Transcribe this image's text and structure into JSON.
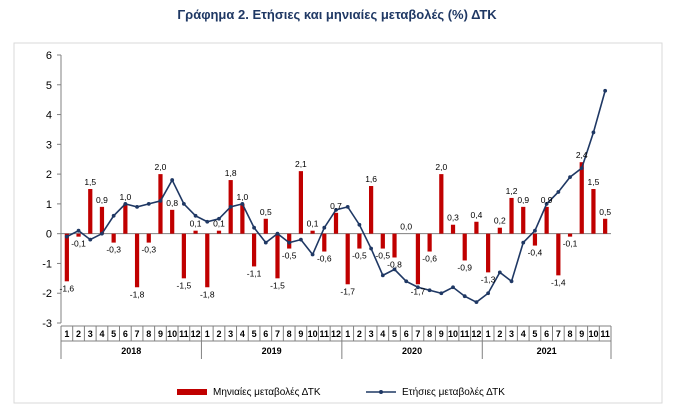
{
  "chart_data": {
    "type": "bar",
    "title": "Γράφημα 2. Ετήσιες και μηνιαίες μεταβολές (%) ΔΤΚ",
    "xlabel": "",
    "ylabel": "",
    "ylim": [
      -3,
      6
    ],
    "yticks": [
      -3,
      -2,
      -1,
      0,
      1,
      2,
      3,
      4,
      5,
      6
    ],
    "grid": false,
    "legend_position": "bottom",
    "month_labels": [
      "1",
      "2",
      "3",
      "4",
      "5",
      "6",
      "7",
      "8",
      "9",
      "10",
      "11",
      "12",
      "1",
      "2",
      "3",
      "4",
      "5",
      "6",
      "7",
      "8",
      "9",
      "10",
      "11",
      "12",
      "1",
      "2",
      "3",
      "4",
      "5",
      "6",
      "7",
      "8",
      "9",
      "10",
      "11",
      "12",
      "1",
      "2",
      "3",
      "4",
      "5",
      "6",
      "7",
      "8",
      "9",
      "10",
      "11"
    ],
    "years": [
      {
        "label": "2018",
        "months": 12
      },
      {
        "label": "2019",
        "months": 12
      },
      {
        "label": "2020",
        "months": 12
      },
      {
        "label": "2021",
        "months": 11
      }
    ],
    "series": [
      {
        "name": "Μηνιαίες μεταβολές ΔΤΚ",
        "kind": "bar",
        "color": "#c00000",
        "values": [
          -1.6,
          -0.1,
          1.5,
          0.9,
          -0.3,
          1.0,
          -1.8,
          -0.3,
          2.0,
          0.8,
          -1.5,
          0.1,
          -1.8,
          0.1,
          1.8,
          1.0,
          -1.1,
          0.5,
          -1.5,
          -0.5,
          2.1,
          0.1,
          -0.6,
          0.7,
          -1.7,
          -0.5,
          1.6,
          -0.5,
          -0.8,
          0.0,
          -1.7,
          -0.6,
          2.0,
          0.3,
          -0.9,
          0.4,
          -1.3,
          0.2,
          1.2,
          0.9,
          -0.4,
          0.9,
          -1.4,
          -0.1,
          2.4,
          1.5,
          0.5
        ]
      },
      {
        "name": "Ετήσιες μεταβολές ΔΤΚ",
        "kind": "line",
        "color": "#1f3864",
        "values": [
          -0.1,
          0.1,
          -0.2,
          0.0,
          0.6,
          1.0,
          0.9,
          1.0,
          1.1,
          1.8,
          1.0,
          0.6,
          0.4,
          0.5,
          0.9,
          1.0,
          0.2,
          -0.3,
          0.0,
          -0.3,
          -0.2,
          -0.7,
          0.2,
          0.8,
          0.9,
          0.3,
          -0.5,
          -1.4,
          -1.2,
          -1.6,
          -1.8,
          -1.9,
          -2.0,
          -1.8,
          -2.1,
          -2.3,
          -2.0,
          -1.3,
          -1.6,
          -0.3,
          0.1,
          1.0,
          1.4,
          1.9,
          2.2,
          3.4,
          4.8
        ]
      }
    ],
    "data_labels": [
      "-1,6",
      "-0,1",
      "1,5",
      "0,9",
      "-0,3",
      "1,0",
      "-1,8",
      "-0,3",
      "2,0",
      "0,8",
      "-1,5",
      "0,1",
      "-1,8",
      "0,1",
      "1,8",
      "1,0",
      "-1,1",
      "0,5",
      "-1,5",
      "-0,5",
      "2,1",
      "0,1",
      "-0,6",
      "0,7",
      "-1,7",
      "-0,5",
      "1,6",
      "-0,5",
      "-0,8",
      "0,0",
      "-1,7",
      "-0,6",
      "2,0",
      "0,3",
      "-0,9",
      "0,4",
      "-1,3",
      "0,2",
      "1,2",
      "0,9",
      "-0,4",
      "0,9",
      "-1,4",
      "-0,1",
      "2,4",
      "1,5",
      "0,5"
    ]
  }
}
